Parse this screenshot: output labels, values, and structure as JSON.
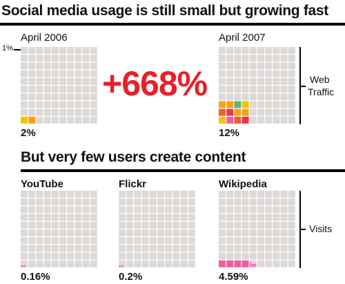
{
  "headlines": {
    "top": "Social media usage is still small but growing fast",
    "bottom": "But very few users create content"
  },
  "annotations": {
    "growth": "+668%",
    "one_percent_marker": "1%",
    "web_traffic_label": [
      "Web",
      "Traffic"
    ],
    "visits_label": "Visits"
  },
  "colors": {
    "cell": "#dcd9d7",
    "highlight_palette": [
      "#f2c500",
      "#f7a20a",
      "#e8344d",
      "#ee5fa0",
      "#5cb27d",
      "#f3a51c",
      "#e7622a"
    ],
    "user_content": "#ee5fa0",
    "accent_red": "#e8202a"
  },
  "chart_data": [
    {
      "type": "waffle",
      "title": "April 2006",
      "grid": [
        10,
        10
      ],
      "value_percent": 2,
      "value_label": "2%",
      "measure": "Web Traffic"
    },
    {
      "type": "waffle",
      "title": "April 2007",
      "grid": [
        10,
        10
      ],
      "value_percent": 12,
      "value_label": "12%",
      "measure": "Web Traffic"
    },
    {
      "type": "waffle",
      "title": "YouTube",
      "grid": [
        10,
        10
      ],
      "value_percent": 0.16,
      "value_label": "0.16%",
      "measure": "Visits"
    },
    {
      "type": "waffle",
      "title": "Flickr",
      "grid": [
        10,
        10
      ],
      "value_percent": 0.2,
      "value_label": "0.2%",
      "measure": "Visits"
    },
    {
      "type": "waffle",
      "title": "Wikipedia",
      "grid": [
        10,
        10
      ],
      "value_percent": 4.59,
      "value_label": "4.59%",
      "measure": "Visits"
    }
  ]
}
